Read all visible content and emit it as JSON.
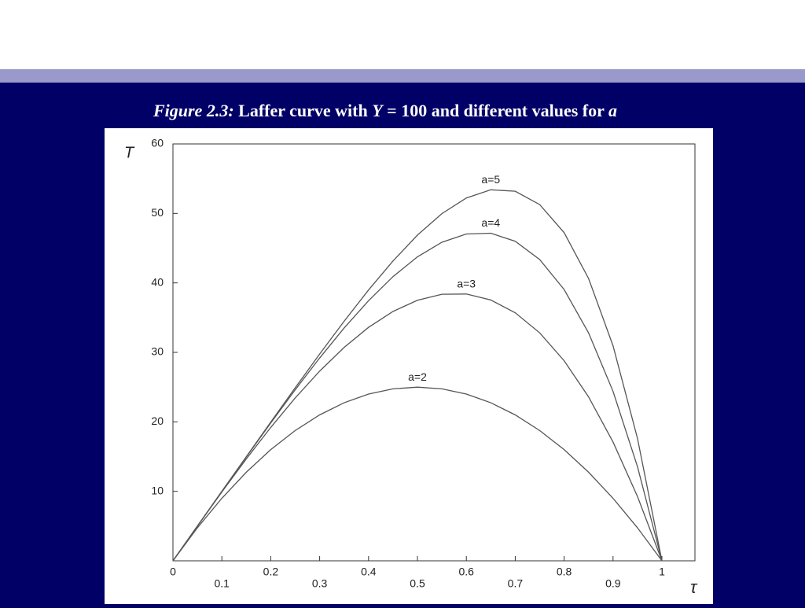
{
  "chart_data": {
    "type": "line",
    "title_parts": [
      "Figure 2.3:",
      " Laffer curve with ",
      "Y",
      " = 100 and different values for ",
      "a"
    ],
    "y_label": "T",
    "x_label": "τ",
    "x": [
      0,
      0.05,
      0.1,
      0.15,
      0.2,
      0.25,
      0.3,
      0.35,
      0.4,
      0.45,
      0.5,
      0.55,
      0.6,
      0.65,
      0.7,
      0.75,
      0.8,
      0.85,
      0.9,
      0.95,
      1
    ],
    "series": [
      {
        "name": "a=2",
        "color": "#555555",
        "values": [
          0,
          4.75,
          9,
          12.75,
          16,
          18.75,
          21,
          22.75,
          24,
          24.75,
          25,
          24.75,
          24,
          22.75,
          21,
          18.75,
          16,
          12.75,
          9,
          4.75,
          0
        ]
      },
      {
        "name": "a=3",
        "color": "#555555",
        "values": [
          0,
          4.99,
          9.9,
          14.66,
          19.2,
          23.44,
          27.3,
          30.71,
          33.6,
          35.89,
          37.5,
          38.36,
          38.4,
          37.54,
          35.7,
          32.81,
          28.8,
          23.59,
          17.1,
          9.26,
          0
        ]
      },
      {
        "name": "a=4",
        "color": "#555555",
        "values": [
          0,
          5.0,
          9.99,
          14.95,
          19.84,
          24.61,
          29.19,
          33.5,
          37.44,
          40.9,
          43.75,
          45.85,
          47.04,
          47.15,
          45.99,
          43.36,
          39.04,
          32.8,
          24.39,
          13.55,
          0
        ]
      },
      {
        "name": "a=5",
        "color": "#555555",
        "values": [
          0,
          5.0,
          10.0,
          14.99,
          19.97,
          24.9,
          29.76,
          34.47,
          38.98,
          43.15,
          46.88,
          49.97,
          52.22,
          53.4,
          53.19,
          51.27,
          47.23,
          40.63,
          30.95,
          17.62,
          0
        ]
      }
    ],
    "xlim": [
      0,
      1.0675
    ],
    "ylim": [
      0,
      60
    ],
    "xticks": [
      0,
      0.1,
      0.2,
      0.3,
      0.4,
      0.5,
      0.6,
      0.7,
      0.8,
      0.9,
      1
    ],
    "yticks": [
      10,
      20,
      30,
      40,
      50,
      60
    ]
  }
}
